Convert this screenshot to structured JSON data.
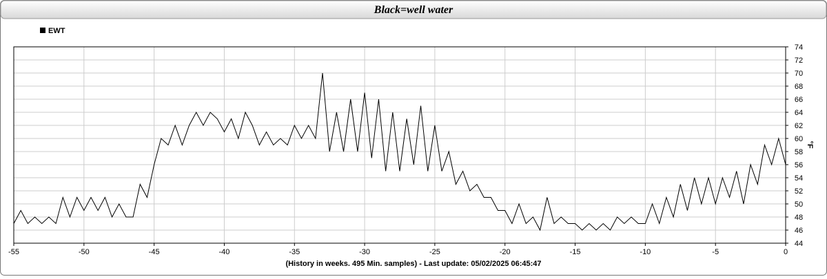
{
  "chart_data": {
    "type": "line",
    "title": "Black=well water",
    "xlabel": "(History in weeks. 495 Min. samples) - Last update: 05/02/2025 06:45:47",
    "ylabel": "°F",
    "legend": "top-left",
    "grid": true,
    "xlim": [
      -55,
      0
    ],
    "ylim": [
      44,
      74
    ],
    "xticks": [
      -55,
      -50,
      -45,
      -40,
      -35,
      -30,
      -25,
      -20,
      -15,
      -10,
      -5,
      0
    ],
    "yticks": [
      44,
      46,
      48,
      50,
      52,
      54,
      56,
      58,
      60,
      62,
      64,
      66,
      68,
      70,
      72,
      74
    ],
    "x": [
      -55,
      -54.5,
      -54,
      -53.5,
      -53,
      -52.5,
      -52,
      -51.5,
      -51,
      -50.5,
      -50,
      -49.5,
      -49,
      -48.5,
      -48,
      -47.5,
      -47,
      -46.5,
      -46,
      -45.5,
      -45,
      -44.5,
      -44,
      -43.5,
      -43,
      -42.5,
      -42,
      -41.5,
      -41,
      -40.5,
      -40,
      -39.5,
      -39,
      -38.5,
      -38,
      -37.5,
      -37,
      -36.5,
      -36,
      -35.5,
      -35,
      -34.5,
      -34,
      -33.5,
      -33,
      -32.5,
      -32,
      -31.5,
      -31,
      -30.5,
      -30,
      -29.5,
      -29,
      -28.5,
      -28,
      -27.5,
      -27,
      -26.5,
      -26,
      -25.5,
      -25,
      -24.5,
      -24,
      -23.5,
      -23,
      -22.5,
      -22,
      -21.5,
      -21,
      -20.5,
      -20,
      -19.5,
      -19,
      -18.5,
      -18,
      -17.5,
      -17,
      -16.5,
      -16,
      -15.5,
      -15,
      -14.5,
      -14,
      -13.5,
      -13,
      -12.5,
      -12,
      -11.5,
      -11,
      -10.5,
      -10,
      -9.5,
      -9,
      -8.5,
      -8,
      -7.5,
      -7,
      -6.5,
      -6,
      -5.5,
      -5,
      -4.5,
      -4,
      -3.5,
      -3,
      -2.5,
      -2,
      -1.5,
      -1,
      -0.5,
      0
    ],
    "series": [
      {
        "name": "EWT",
        "color": "#000000",
        "values": [
          47,
          49,
          47,
          48,
          47,
          48,
          47,
          51,
          48,
          51,
          49,
          51,
          49,
          51,
          48,
          50,
          48,
          48,
          53,
          51,
          56,
          60,
          59,
          62,
          59,
          62,
          64,
          62,
          64,
          63,
          61,
          63,
          60,
          64,
          62,
          59,
          61,
          59,
          60,
          59,
          62,
          60,
          62,
          60,
          70,
          58,
          64,
          58,
          66,
          58,
          67,
          57,
          66,
          55,
          64,
          55,
          63,
          56,
          65,
          55,
          62,
          55,
          58,
          53,
          55,
          52,
          53,
          51,
          51,
          49,
          49,
          47,
          50,
          47,
          48,
          46,
          51,
          47,
          48,
          47,
          47,
          46,
          47,
          46,
          47,
          46,
          48,
          47,
          48,
          47,
          47,
          50,
          47,
          51,
          48,
          53,
          49,
          54,
          50,
          54,
          50,
          54,
          51,
          55,
          50,
          56,
          53,
          59,
          56,
          60,
          56
        ]
      }
    ]
  }
}
